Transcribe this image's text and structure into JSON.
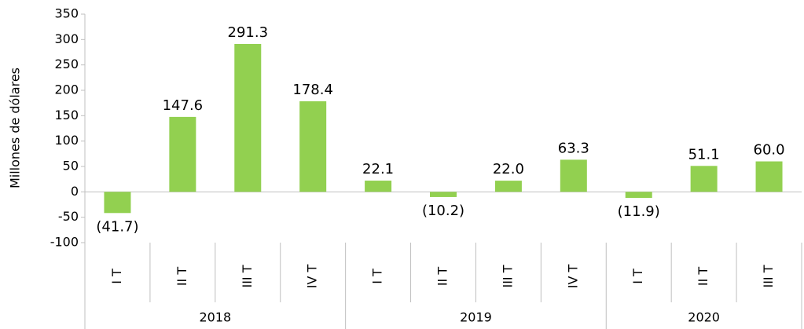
{
  "chart_data": {
    "type": "bar",
    "y_label": "Millones de dólares",
    "groups": [
      {
        "label": "2018",
        "categories": [
          "I T",
          "II T",
          "III T",
          "IV T"
        ]
      },
      {
        "label": "2019",
        "categories": [
          "I T",
          "II T",
          "III T",
          "IV T"
        ]
      },
      {
        "label": "2020",
        "categories": [
          "I T",
          "II T",
          "III T"
        ]
      }
    ],
    "values": [
      -41.7,
      147.6,
      291.3,
      178.4,
      22.1,
      -10.2,
      22.0,
      63.3,
      -11.9,
      51.1,
      60.0
    ],
    "value_labels": [
      "(41.7)",
      "147.6",
      "291.3",
      "178.4",
      "22.1",
      "(10.2)",
      "22.0",
      "63.3",
      "(11.9)",
      "51.1",
      "60.0"
    ],
    "color": "#92d050",
    "ylim": [
      -100,
      350
    ],
    "yticks": [
      -100,
      -50,
      0,
      50,
      100,
      150,
      200,
      250,
      300,
      350
    ]
  }
}
